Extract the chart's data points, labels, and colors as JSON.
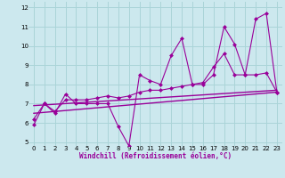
{
  "bg_color": "#cce8ee",
  "line_color": "#990099",
  "grid_color": "#aad4d8",
  "xlabel": "Windchill (Refroidissement éolien,°C)",
  "xlim": [
    -0.5,
    23.5
  ],
  "ylim": [
    4.8,
    12.3
  ],
  "yticks": [
    5,
    6,
    7,
    8,
    9,
    10,
    11,
    12
  ],
  "xticks": [
    0,
    1,
    2,
    3,
    4,
    5,
    6,
    7,
    8,
    9,
    10,
    11,
    12,
    13,
    14,
    15,
    16,
    17,
    18,
    19,
    20,
    21,
    22,
    23
  ],
  "series1_x": [
    0,
    1,
    2,
    3,
    4,
    5,
    6,
    7,
    8,
    9,
    10,
    11,
    12,
    13,
    14,
    15,
    16,
    17,
    18,
    19,
    20,
    21,
    22,
    23
  ],
  "series1_y": [
    5.9,
    7.0,
    6.5,
    7.5,
    7.0,
    7.0,
    7.0,
    7.0,
    5.8,
    4.8,
    8.5,
    8.2,
    8.0,
    9.5,
    10.4,
    8.0,
    8.0,
    8.5,
    11.0,
    10.1,
    8.5,
    11.4,
    11.7,
    7.6
  ],
  "series2_x": [
    0,
    1,
    2,
    3,
    4,
    5,
    6,
    7,
    8,
    9,
    10,
    11,
    12,
    13,
    14,
    15,
    16,
    17,
    18,
    19,
    20,
    21,
    22,
    23
  ],
  "series2_y": [
    6.2,
    7.0,
    6.6,
    7.2,
    7.2,
    7.2,
    7.3,
    7.4,
    7.3,
    7.4,
    7.6,
    7.7,
    7.7,
    7.8,
    7.9,
    8.0,
    8.1,
    8.9,
    9.6,
    8.5,
    8.5,
    8.5,
    8.6,
    7.6
  ],
  "series3_x": [
    0,
    23
  ],
  "series3_y": [
    6.5,
    7.6
  ],
  "series4_x": [
    0,
    23
  ],
  "series4_y": [
    6.9,
    7.7
  ]
}
